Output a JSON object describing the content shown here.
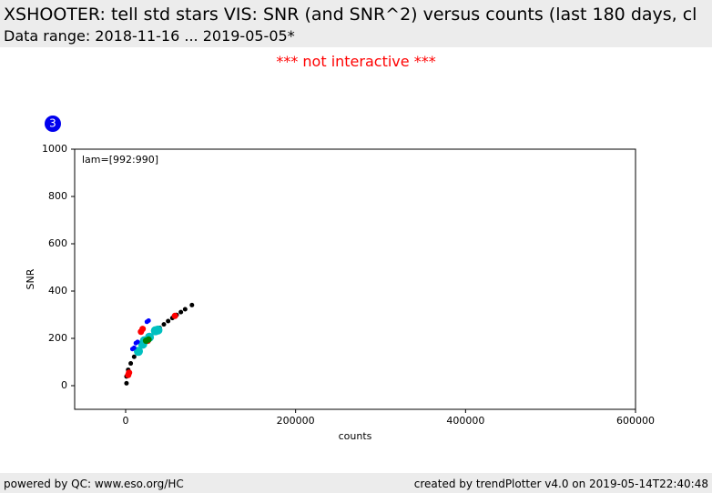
{
  "header": {
    "title": "XSHOOTER: tell std stars VIS: SNR (and SNR^2) versus counts (last 180 days, cl",
    "subtitle": "Data range: 2018-11-16 ... 2019-05-05*"
  },
  "note": "*** not interactive ***",
  "badge": "3",
  "chart_data": {
    "type": "scatter",
    "annotation": "lam=[992:990]",
    "x_label": "counts",
    "y_label": "SNR",
    "xlim": [
      -60000,
      600000
    ],
    "xticks": [
      0,
      200000,
      400000,
      600000
    ],
    "ylim": [
      -100,
      1000
    ],
    "yticks": [
      0,
      200,
      400,
      600,
      800,
      1000
    ],
    "series": [
      {
        "color": "#000000",
        "x": [
          1000,
          1000,
          3000,
          6000,
          10000,
          15000,
          20000,
          25000,
          30000,
          35000,
          40000,
          45000,
          50000,
          55000,
          60000,
          65000,
          70000,
          78000
        ],
        "values": [
          10,
          39,
          67,
          94,
          122,
          149,
          172,
          193,
          211,
          228,
          244,
          259,
          273,
          286,
          299,
          311,
          323,
          341
        ]
      },
      {
        "color": "#00c0c0",
        "x": [
          15000,
          20000,
          22000,
          28000,
          35000,
          38000
        ],
        "values": [
          145,
          175,
          190,
          205,
          232,
          235
        ]
      },
      {
        "color": "#0000ff",
        "x": [
          8000,
          10000,
          12000,
          14000,
          25000,
          27000
        ],
        "values": [
          155,
          160,
          180,
          185,
          270,
          275
        ]
      },
      {
        "color": "#ff0000",
        "x": [
          3000,
          4000,
          18000,
          20000,
          26000,
          58000
        ],
        "values": [
          45,
          55,
          228,
          240,
          190,
          295
        ]
      },
      {
        "color": "#008000",
        "x": [
          24000,
          27000
        ],
        "values": [
          190,
          195
        ]
      }
    ]
  },
  "footer": {
    "left": "powered by QC: www.eso.org/HC",
    "right": "created by trendPlotter v4.0 on 2019-05-14T22:40:48"
  }
}
